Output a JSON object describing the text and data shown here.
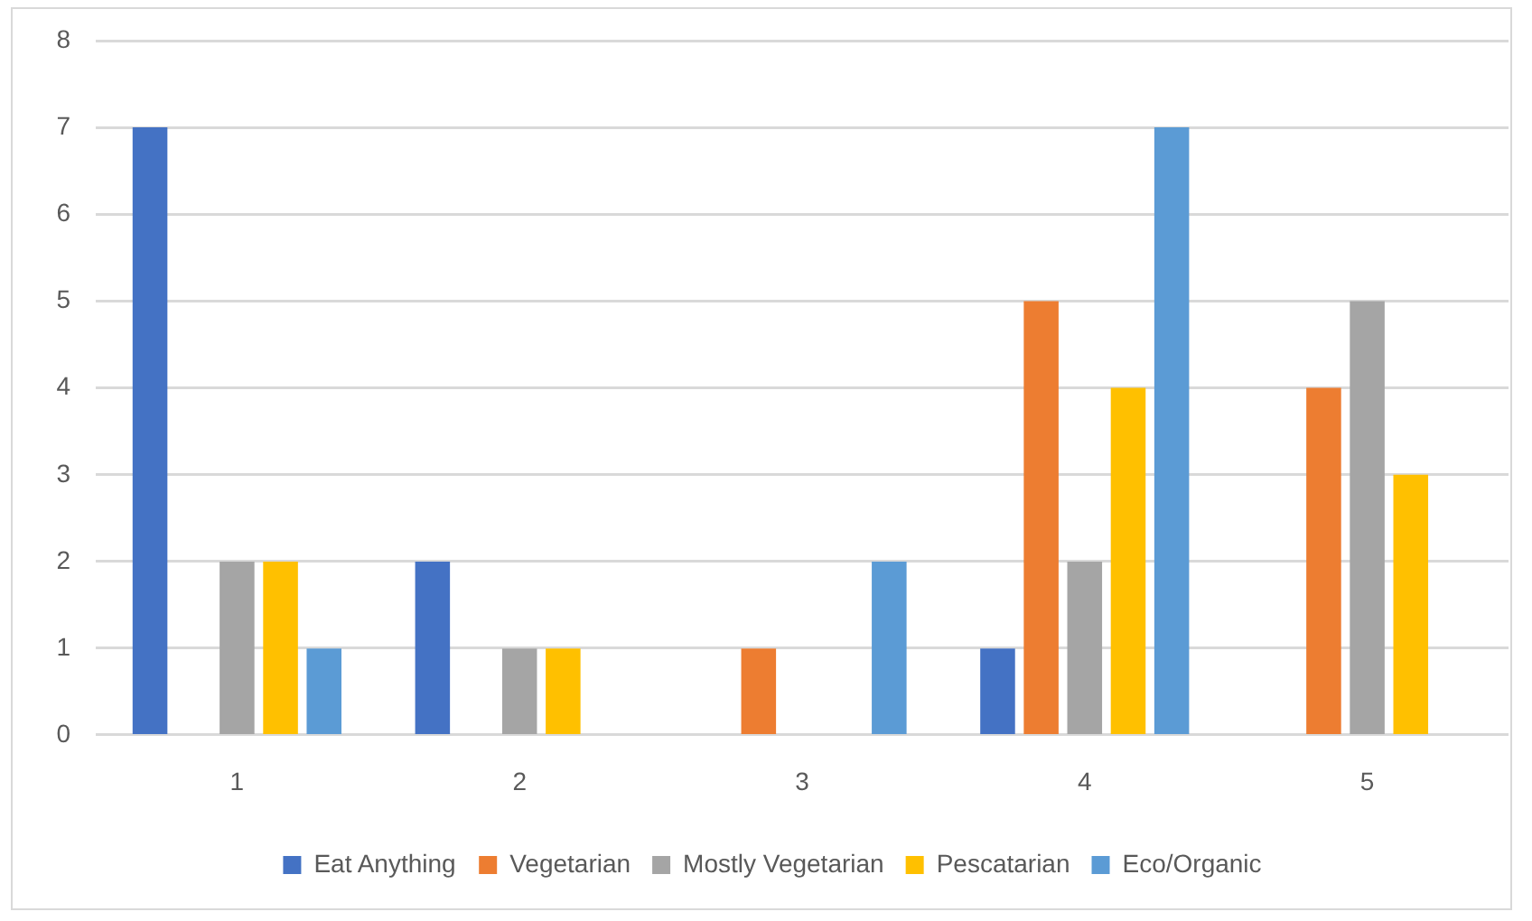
{
  "chart_data": {
    "type": "bar",
    "categories": [
      "1",
      "2",
      "3",
      "4",
      "5"
    ],
    "series": [
      {
        "name": "Eat Anything",
        "color": "#4472c4",
        "values": [
          7,
          2,
          0,
          1,
          0
        ]
      },
      {
        "name": "Vegetarian",
        "color": "#ed7d31",
        "values": [
          0,
          0,
          1,
          5,
          4
        ]
      },
      {
        "name": "Mostly Vegetarian",
        "color": "#a5a5a5",
        "values": [
          2,
          1,
          0,
          2,
          5
        ]
      },
      {
        "name": "Pescatarian",
        "color": "#ffc000",
        "values": [
          2,
          1,
          0,
          4,
          3
        ]
      },
      {
        "name": "Eco/Organic",
        "color": "#5b9bd5",
        "values": [
          1,
          0,
          2,
          7,
          0
        ]
      }
    ],
    "ylim": [
      0,
      8
    ],
    "yticks": [
      0,
      1,
      2,
      3,
      4,
      5,
      6,
      7,
      8
    ],
    "grid": "y",
    "legend": "bottom"
  }
}
